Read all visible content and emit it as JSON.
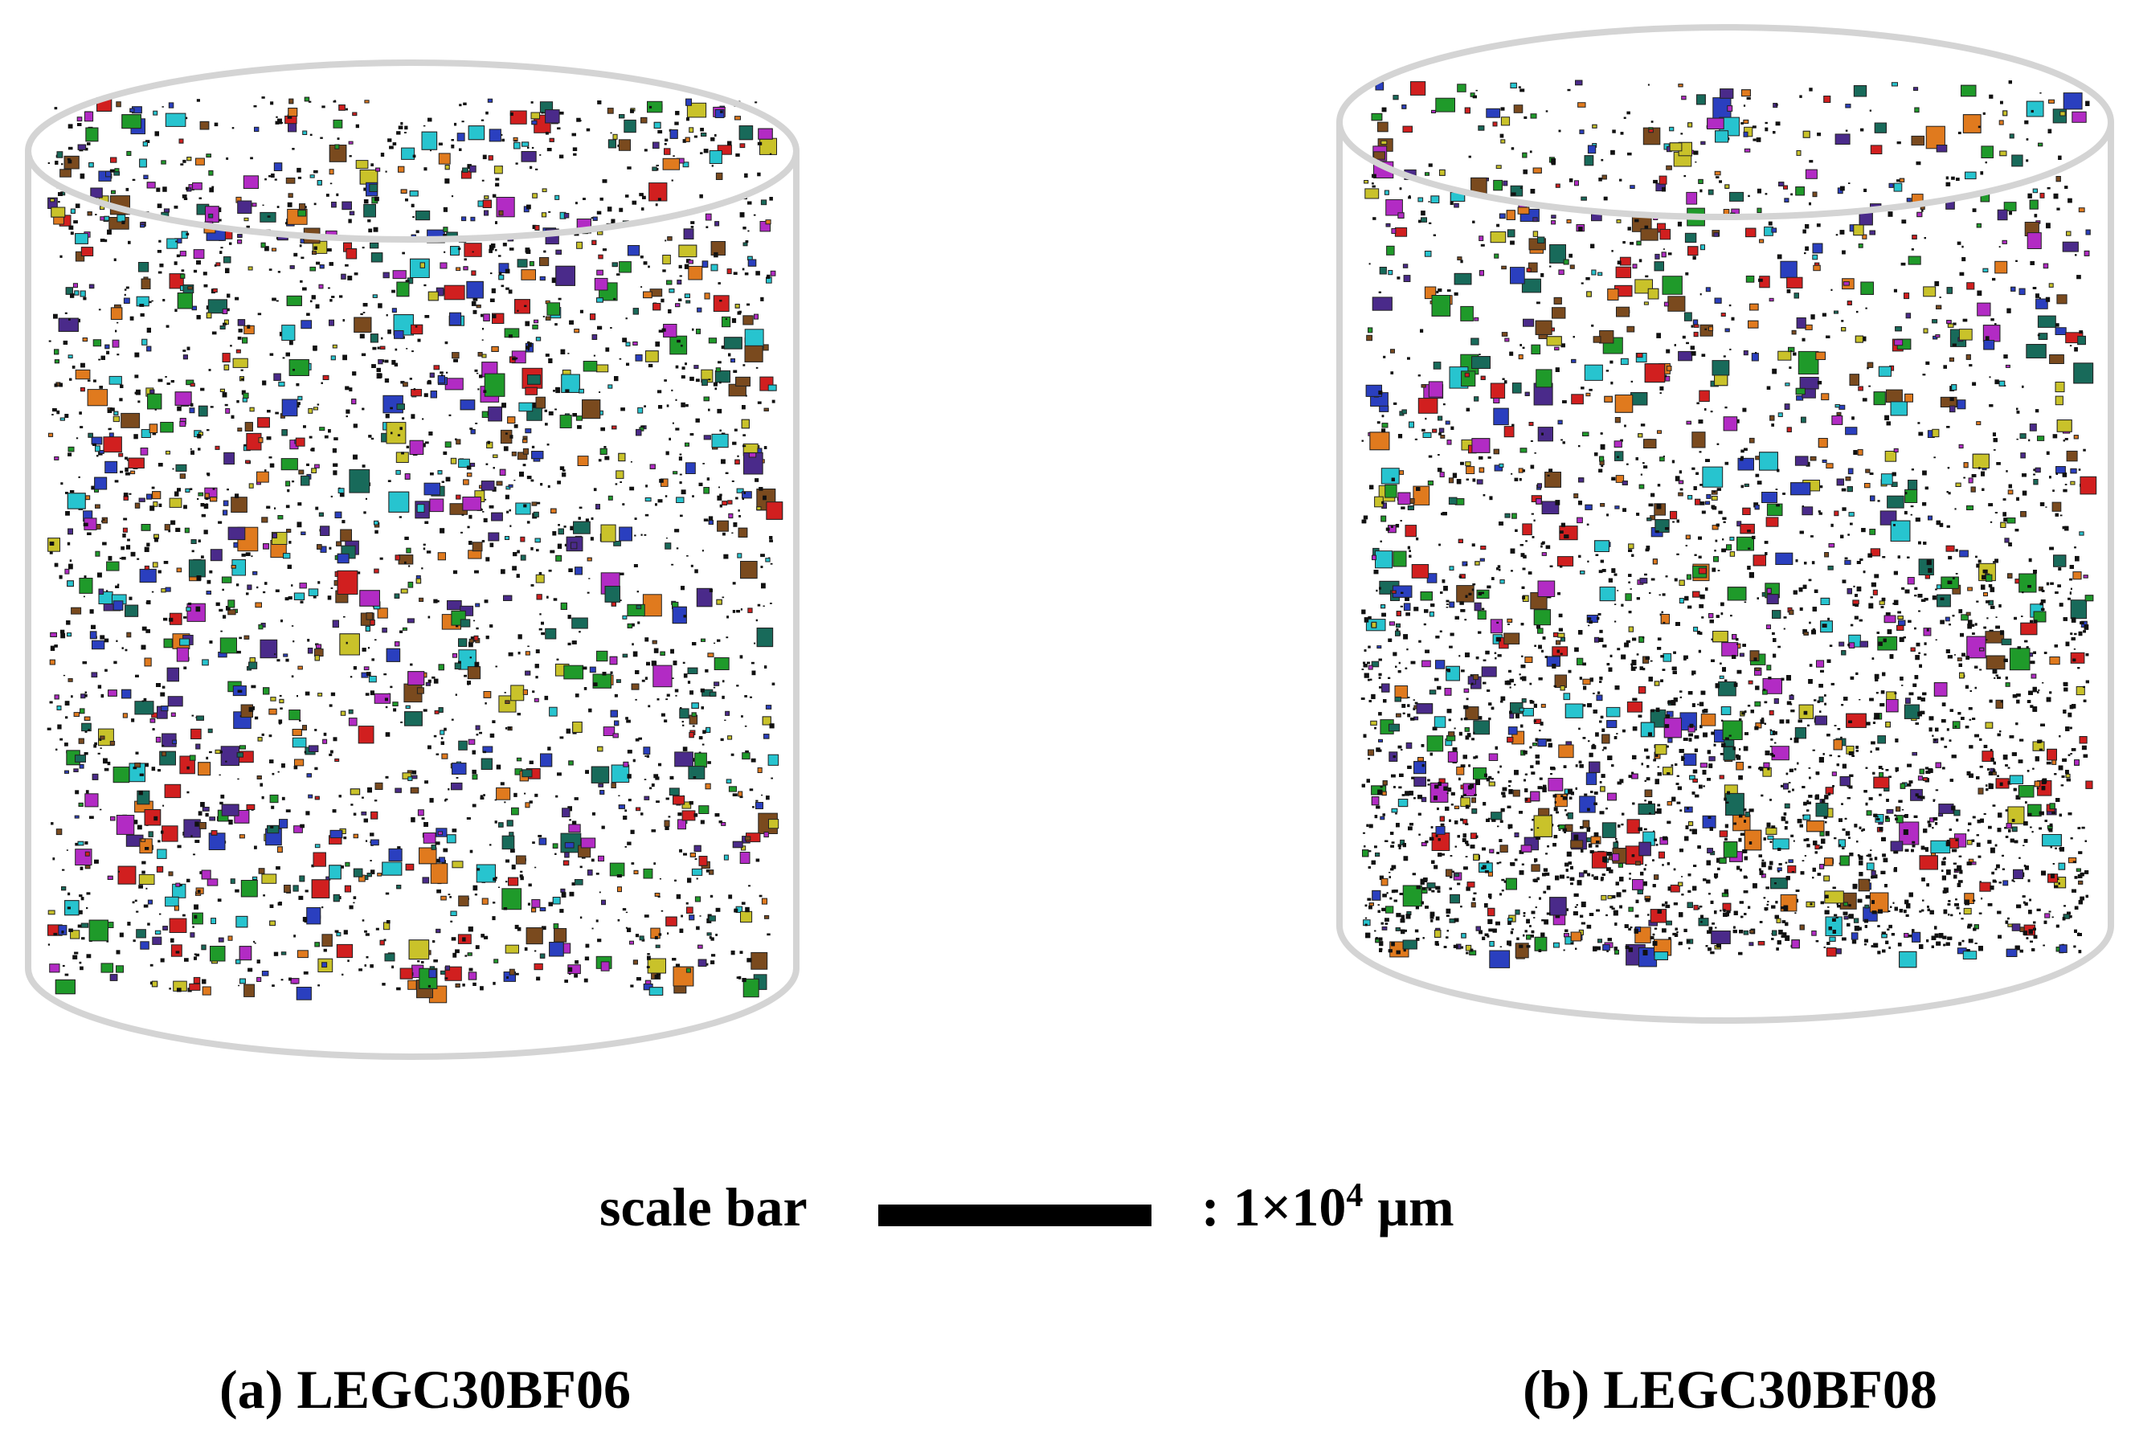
{
  "panels": [
    {
      "label": "(a) LEGC30BF06"
    },
    {
      "label": "(b) LEGC30BF08"
    }
  ],
  "scale_bar": {
    "label": "scale bar",
    "value_text": ": 1×10",
    "exponent": "4",
    "unit": "μm"
  }
}
